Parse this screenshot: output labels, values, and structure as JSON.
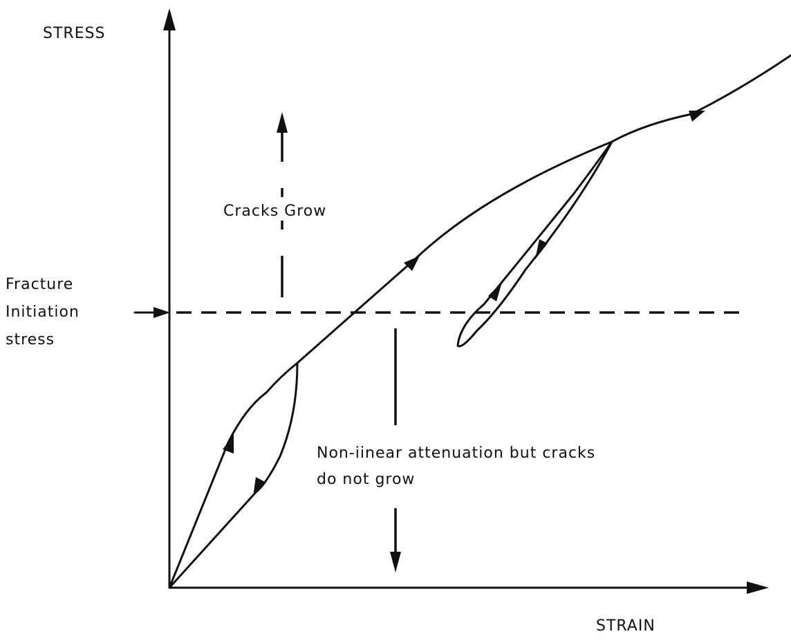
{
  "axes": {
    "y_label": "STRESS",
    "x_label": "STRAIN"
  },
  "labels": {
    "cracks_grow": "Cracks Grow",
    "fracture_initiation": [
      "Fracture",
      "Initiation",
      "stress"
    ],
    "nonlinear": [
      "Non-iinear attenuation but cracks",
      "do not grow"
    ]
  }
}
